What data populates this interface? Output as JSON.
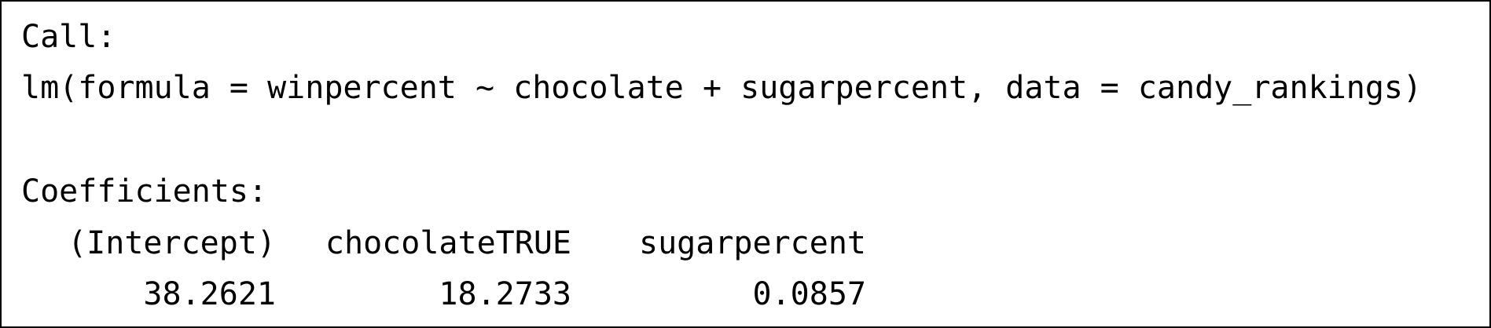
{
  "output": {
    "call_label": "Call:",
    "call_formula": "lm(formula = winpercent ~ chocolate + sugarpercent, data = candy_rankings)",
    "coefficients_label": "Coefficients:",
    "coefficients": [
      {
        "name": "(Intercept)",
        "value": "38.2621"
      },
      {
        "name": "chocolateTRUE",
        "value": "18.2733"
      },
      {
        "name": "sugarpercent",
        "value": "0.0857"
      }
    ]
  }
}
